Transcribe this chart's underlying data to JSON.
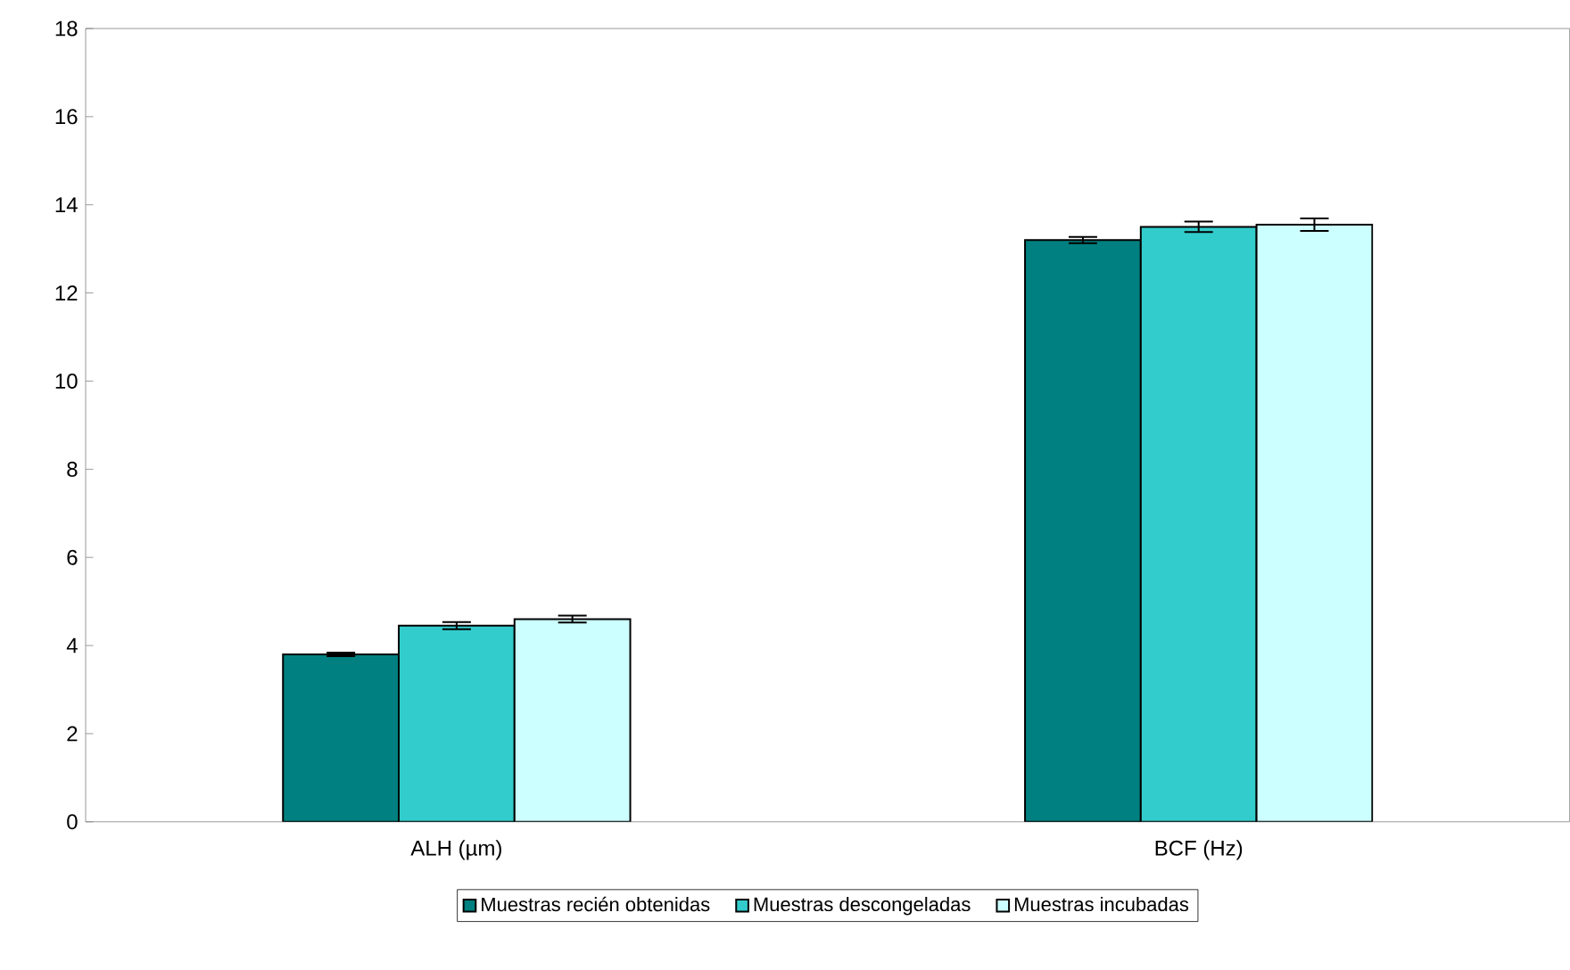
{
  "chart_data": {
    "type": "bar",
    "categories": [
      "ALH (µm)",
      "BCF (Hz)"
    ],
    "series": [
      {
        "name": "Muestras recién obtenidas",
        "color": "#008080",
        "values": [
          3.8,
          13.2
        ],
        "errors": [
          0.04,
          0.07
        ]
      },
      {
        "name": "Muestras descongeladas",
        "color": "#33cccc",
        "values": [
          4.45,
          13.5
        ],
        "errors": [
          0.08,
          0.12
        ]
      },
      {
        "name": "Muestras incubadas",
        "color": "#ccffff",
        "values": [
          4.6,
          13.55
        ],
        "errors": [
          0.08,
          0.14
        ]
      }
    ],
    "ylim": [
      0,
      18
    ],
    "yticks": [
      0,
      2,
      4,
      6,
      8,
      10,
      12,
      14,
      16,
      18
    ],
    "grid": false,
    "legend": "bottom"
  }
}
